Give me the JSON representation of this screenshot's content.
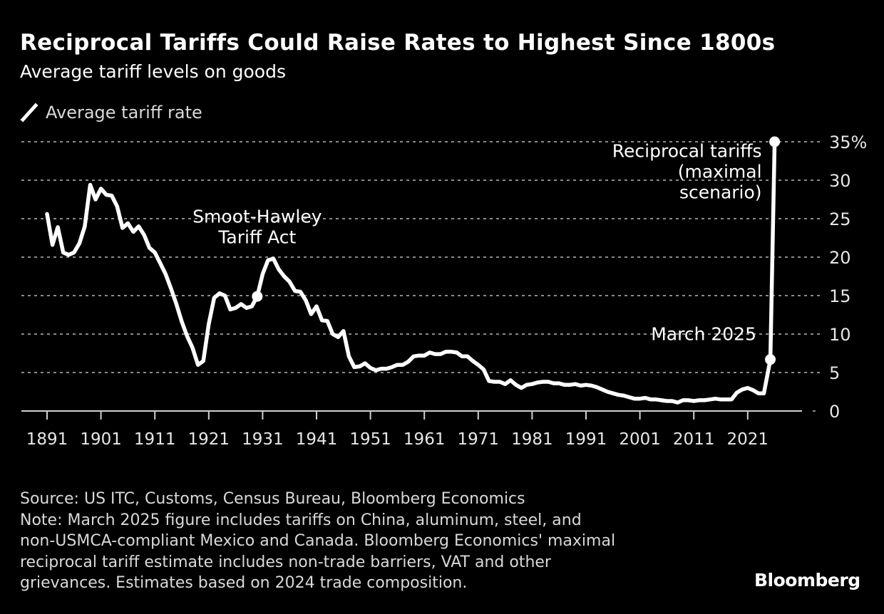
{
  "header": {
    "title": "Reciprocal Tariffs Could Raise Rates to Highest Since 1800s",
    "subtitle": "Average tariff levels on goods"
  },
  "legend": [
    {
      "label": "Average tariff rate",
      "color": "#ffffff",
      "icon": "line-swatch-icon"
    }
  ],
  "chart_data": {
    "type": "line",
    "title": "Reciprocal Tariffs Could Raise Rates to Highest Since 1800s",
    "subtitle": "Average tariff levels on goods",
    "xlabel": "",
    "ylabel": "",
    "xlim": [
      1888,
      2031
    ],
    "ylim": [
      0,
      35
    ],
    "x_ticks": [
      1891,
      1901,
      1911,
      1921,
      1931,
      1941,
      1951,
      1961,
      1971,
      1981,
      1991,
      2001,
      2011,
      2021
    ],
    "x_tick_labels": [
      "1891",
      "1901",
      "1911",
      "1921",
      "1931",
      "1941",
      "1951",
      "1961",
      "1971",
      "1981",
      "1991",
      "2001",
      "2011",
      "2021"
    ],
    "y_ticks": [
      0,
      5,
      10,
      15,
      20,
      25,
      30,
      35
    ],
    "y_tick_labels": [
      "0",
      "5",
      "10",
      "15",
      "20",
      "25",
      "30",
      "35%"
    ],
    "y_axis_position": "right",
    "grid": "horizontal dotted",
    "legend_position": "top-left",
    "series": [
      {
        "name": "Average tariff rate",
        "color": "#ffffff",
        "x": [
          1891,
          1892,
          1893,
          1894,
          1895,
          1896,
          1897,
          1898,
          1899,
          1900,
          1901,
          1902,
          1903,
          1904,
          1905,
          1906,
          1907,
          1908,
          1909,
          1910,
          1911,
          1912,
          1913,
          1914,
          1915,
          1916,
          1917,
          1918,
          1919,
          1920,
          1921,
          1922,
          1923,
          1924,
          1925,
          1926,
          1927,
          1928,
          1929,
          1930,
          1931,
          1932,
          1933,
          1934,
          1935,
          1936,
          1937,
          1938,
          1939,
          1940,
          1941,
          1942,
          1943,
          1944,
          1945,
          1946,
          1947,
          1948,
          1949,
          1950,
          1951,
          1952,
          1953,
          1954,
          1955,
          1956,
          1957,
          1958,
          1959,
          1960,
          1961,
          1962,
          1963,
          1964,
          1965,
          1966,
          1967,
          1968,
          1969,
          1970,
          1971,
          1972,
          1973,
          1974,
          1975,
          1976,
          1977,
          1978,
          1979,
          1980,
          1981,
          1982,
          1983,
          1984,
          1985,
          1986,
          1987,
          1988,
          1989,
          1990,
          1991,
          1992,
          1993,
          1994,
          1995,
          1996,
          1997,
          1998,
          1999,
          2000,
          2001,
          2002,
          2003,
          2004,
          2005,
          2006,
          2007,
          2008,
          2009,
          2010,
          2011,
          2012,
          2013,
          2014,
          2015,
          2016,
          2017,
          2018,
          2019,
          2020,
          2021,
          2022,
          2023,
          2024,
          2025.2,
          2026
        ],
        "values": [
          25.6,
          21.6,
          23.9,
          20.6,
          20.3,
          20.6,
          21.8,
          24.0,
          29.4,
          27.5,
          28.9,
          28.1,
          28.0,
          26.6,
          23.8,
          24.4,
          23.3,
          24.0,
          22.9,
          21.2,
          20.6,
          19.2,
          17.8,
          15.9,
          13.9,
          11.6,
          9.7,
          8.2,
          6.0,
          6.5,
          11.3,
          14.7,
          15.3,
          15.0,
          13.2,
          13.4,
          13.9,
          13.4,
          13.6,
          14.9,
          17.8,
          19.6,
          19.8,
          18.4,
          17.5,
          16.8,
          15.6,
          15.5,
          14.4,
          12.6,
          13.6,
          11.8,
          11.7,
          10.0,
          9.6,
          10.4,
          7.1,
          5.7,
          5.8,
          6.2,
          5.6,
          5.3,
          5.5,
          5.5,
          5.7,
          6.0,
          6.0,
          6.4,
          7.1,
          7.2,
          7.2,
          7.6,
          7.4,
          7.4,
          7.7,
          7.7,
          7.6,
          7.1,
          7.1,
          6.5,
          6.0,
          5.4,
          3.9,
          3.8,
          3.8,
          3.5,
          4.0,
          3.4,
          3.0,
          3.4,
          3.5,
          3.7,
          3.8,
          3.8,
          3.6,
          3.6,
          3.4,
          3.4,
          3.5,
          3.3,
          3.4,
          3.3,
          3.1,
          2.8,
          2.5,
          2.3,
          2.1,
          2.0,
          1.8,
          1.6,
          1.6,
          1.7,
          1.5,
          1.5,
          1.4,
          1.3,
          1.3,
          1.1,
          1.4,
          1.4,
          1.3,
          1.4,
          1.4,
          1.5,
          1.6,
          1.5,
          1.5,
          1.5,
          2.4,
          2.8,
          3.0,
          2.7,
          2.3,
          2.3,
          6.7,
          35.0
        ]
      }
    ],
    "markers": [
      {
        "x": 1930,
        "y": 14.9,
        "label": "Smoot-Hawley Tariff Act"
      },
      {
        "x": 2025.2,
        "y": 6.7,
        "label": "March 2025"
      },
      {
        "x": 2026,
        "y": 35.0,
        "label": "Reciprocal tariffs (maximal scenario)"
      }
    ],
    "annotations": [
      {
        "lines": [
          "Smoot-Hawley",
          "Tariff Act"
        ],
        "anchor_x": 1930,
        "anchor_y": 24.5,
        "align": "center"
      },
      {
        "lines": [
          "Reciprocal tariffs",
          "(maximal",
          "scenario)"
        ],
        "anchor_x": 2025.2,
        "anchor_y": 33.0,
        "align": "end"
      },
      {
        "lines": [
          "March 2025"
        ],
        "anchor_x": 2024.2,
        "anchor_y": 9.2,
        "align": "end"
      }
    ]
  },
  "footer": {
    "lines": [
      "Source: US ITC, Customs, Census Bureau, Bloomberg Economics",
      "Note: March 2025 figure includes tariffs on China, aluminum, steel, and",
      "non-USMCA-compliant Mexico and Canada. Bloomberg Economics' maximal",
      "reciprocal tariff estimate includes non-trade barriers, VAT and other",
      "grievances. Estimates based on 2024 trade composition."
    ],
    "brand": "Bloomberg"
  }
}
